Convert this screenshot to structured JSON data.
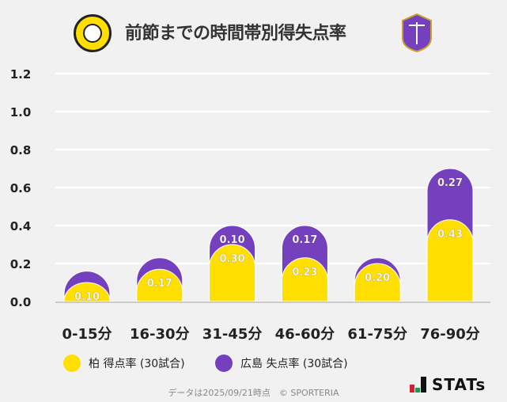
{
  "header": {
    "title": "前節までの時間帯別得失点率",
    "left_logo": "KASHIWA REYSOL",
    "right_logo": "SANFRECCE"
  },
  "chart_data": {
    "type": "bar",
    "stacked": true,
    "title": "前節までの時間帯別得失点率",
    "categories": [
      "0-15分",
      "16-30分",
      "31-45分",
      "46-60分",
      "61-75分",
      "76-90分"
    ],
    "series": [
      {
        "name": "柏 得点率 (30試合)",
        "color": "#ffdf00",
        "values": [
          0.1,
          0.17,
          0.3,
          0.23,
          0.2,
          0.43
        ],
        "labels": [
          "0.10",
          "0.17",
          "0.30",
          "0.23",
          "0.20",
          "0.43"
        ]
      },
      {
        "name": "広島 失点率 (30試合)",
        "color": "#7440bd",
        "values": [
          0.06,
          0.06,
          0.1,
          0.17,
          0.03,
          0.27
        ],
        "labels": [
          "",
          "",
          "0.10",
          "0.17",
          "",
          "0.27"
        ]
      }
    ],
    "ylim": [
      0,
      1.2
    ],
    "yticks": [
      "0.0",
      "0.2",
      "0.4",
      "0.6",
      "0.8",
      "1.0",
      "1.2"
    ],
    "grid": true,
    "legend": "bottom"
  },
  "footer": {
    "credit": "データは2025/09/21時点　© SPORTERIA",
    "brand": "STATs"
  }
}
